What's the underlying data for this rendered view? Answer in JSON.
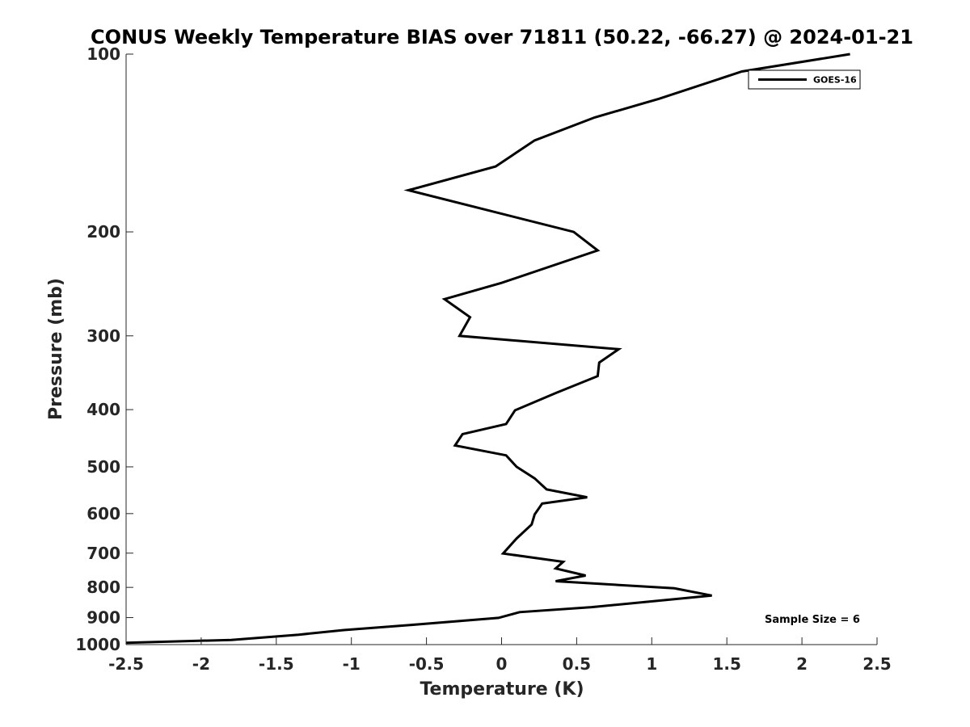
{
  "chart_data": {
    "type": "line",
    "title": "CONUS Weekly Temperature BIAS over 71811 (50.22, -66.27) @ 2024-01-21",
    "xlabel": "Temperature (K)",
    "ylabel": "Pressure (mb)",
    "xlim": [
      -2.5,
      2.5
    ],
    "ylim": [
      1000,
      100
    ],
    "y_scale": "log",
    "y_reversed": true,
    "x_ticks": [
      -2.5,
      -2,
      -1.5,
      -1,
      -0.5,
      0,
      0.5,
      1,
      1.5,
      2,
      2.5
    ],
    "x_tick_labels": [
      "-2.5",
      "-2",
      "-1.5",
      "-1",
      "-0.5",
      "0",
      "0.5",
      "1",
      "1.5",
      "2",
      "2.5"
    ],
    "y_ticks": [
      100,
      200,
      300,
      400,
      500,
      600,
      700,
      800,
      900,
      1000
    ],
    "y_tick_labels": [
      "100",
      "200",
      "300",
      "400",
      "500",
      "600",
      "700",
      "800",
      "900",
      "1000"
    ],
    "grid": false,
    "legend_position": "top-right",
    "annotation": "Sample Size = 6",
    "series": [
      {
        "name": "GOES-16",
        "color": "#000000",
        "points": [
          {
            "x": 2.32,
            "y": 100
          },
          {
            "x": 1.6,
            "y": 107
          },
          {
            "x": 1.05,
            "y": 119
          },
          {
            "x": 0.62,
            "y": 128
          },
          {
            "x": 0.22,
            "y": 140
          },
          {
            "x": -0.04,
            "y": 155
          },
          {
            "x": -0.62,
            "y": 170
          },
          {
            "x": 0.48,
            "y": 200
          },
          {
            "x": 0.64,
            "y": 215
          },
          {
            "x": 0.0,
            "y": 244
          },
          {
            "x": -0.38,
            "y": 260
          },
          {
            "x": -0.21,
            "y": 279
          },
          {
            "x": -0.28,
            "y": 300
          },
          {
            "x": 0.78,
            "y": 316
          },
          {
            "x": 0.65,
            "y": 333
          },
          {
            "x": 0.64,
            "y": 351
          },
          {
            "x": 0.36,
            "y": 375
          },
          {
            "x": 0.09,
            "y": 401
          },
          {
            "x": 0.03,
            "y": 423
          },
          {
            "x": -0.26,
            "y": 440
          },
          {
            "x": -0.31,
            "y": 460
          },
          {
            "x": 0.03,
            "y": 478
          },
          {
            "x": 0.1,
            "y": 500
          },
          {
            "x": 0.22,
            "y": 523
          },
          {
            "x": 0.3,
            "y": 546
          },
          {
            "x": 0.57,
            "y": 563
          },
          {
            "x": 0.27,
            "y": 577
          },
          {
            "x": 0.22,
            "y": 602
          },
          {
            "x": 0.2,
            "y": 626
          },
          {
            "x": 0.1,
            "y": 661
          },
          {
            "x": 0.01,
            "y": 701
          },
          {
            "x": 0.41,
            "y": 724
          },
          {
            "x": 0.36,
            "y": 743
          },
          {
            "x": 0.56,
            "y": 764
          },
          {
            "x": 0.36,
            "y": 781
          },
          {
            "x": 1.15,
            "y": 803
          },
          {
            "x": 1.4,
            "y": 826
          },
          {
            "x": 0.6,
            "y": 864
          },
          {
            "x": 0.12,
            "y": 881
          },
          {
            "x": -0.02,
            "y": 901
          },
          {
            "x": -0.55,
            "y": 924
          },
          {
            "x": -1.05,
            "y": 945
          },
          {
            "x": -1.35,
            "y": 962
          },
          {
            "x": -1.8,
            "y": 982
          },
          {
            "x": -2.5,
            "y": 993
          }
        ]
      }
    ]
  }
}
